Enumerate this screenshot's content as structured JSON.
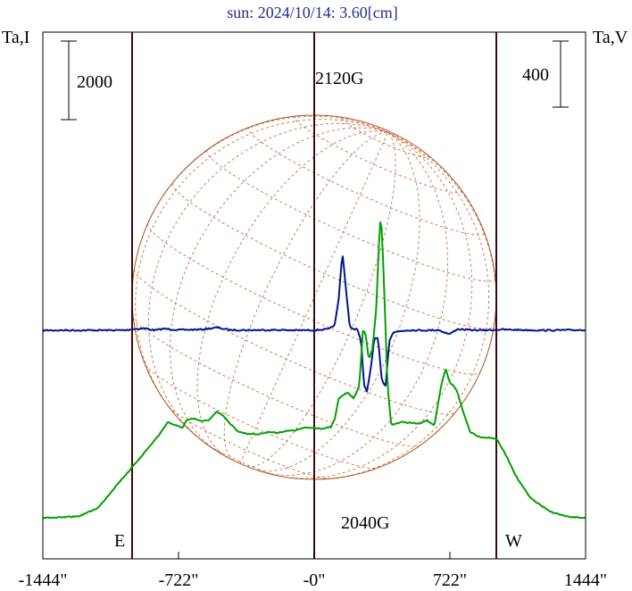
{
  "title": "sun: 2024/10/14: 3.60[cm]",
  "left_axis_label": "Ta,I",
  "right_axis_label": "Ta,V",
  "scale_bars": {
    "left": {
      "value": 2000,
      "label": "2000"
    },
    "right": {
      "value": 400,
      "label": "400"
    }
  },
  "annotations": {
    "peak_label": "2120G",
    "trough_label": "2040G",
    "east_label": "E",
    "west_label": "W"
  },
  "colors": {
    "intensity": "#00148c",
    "polarization": "#00a000",
    "disk": "#b4501e",
    "frame": "#000000",
    "limb_lines": "#3c0a0a"
  },
  "chart_data": {
    "type": "line",
    "title": "sun: 2024/10/14: 3.60[cm]",
    "x_unit": "arcsec",
    "xlim": [
      -1444,
      1444
    ],
    "x_ticks": [
      -1444,
      -722,
      0,
      722,
      1444
    ],
    "x_tick_labels": [
      "-1444\"",
      "-722\"",
      "-0\"",
      "722\"",
      "1444\""
    ],
    "vertical_lines": [
      -969,
      0,
      969
    ],
    "solar_radius_arcsec": 969,
    "series": [
      {
        "name": "Ta,I",
        "axis": "left",
        "units": "K",
        "scale_bar": 2000,
        "points": [
          [
            -1444,
            0
          ],
          [
            -1200,
            2
          ],
          [
            -1000,
            3
          ],
          [
            -969,
            30
          ],
          [
            -900,
            50
          ],
          [
            -850,
            0
          ],
          [
            -800,
            40
          ],
          [
            -722,
            10
          ],
          [
            -600,
            20
          ],
          [
            -520,
            70
          ],
          [
            -450,
            10
          ],
          [
            -350,
            5
          ],
          [
            -200,
            10
          ],
          [
            -100,
            0
          ],
          [
            0,
            5
          ],
          [
            80,
            30
          ],
          [
            110,
            150
          ],
          [
            130,
            780
          ],
          [
            150,
            2000
          ],
          [
            170,
            1000
          ],
          [
            190,
            50
          ],
          [
            230,
            30
          ],
          [
            250,
            -300
          ],
          [
            265,
            -1400
          ],
          [
            280,
            -1570
          ],
          [
            300,
            -1000
          ],
          [
            320,
            -200
          ],
          [
            340,
            -220
          ],
          [
            360,
            -1300
          ],
          [
            380,
            -1400
          ],
          [
            400,
            -250
          ],
          [
            420,
            -50
          ],
          [
            460,
            -20
          ],
          [
            500,
            5
          ],
          [
            600,
            0
          ],
          [
            660,
            10
          ],
          [
            720,
            -100
          ],
          [
            760,
            30
          ],
          [
            820,
            10
          ],
          [
            900,
            0
          ],
          [
            1000,
            20
          ],
          [
            1200,
            0
          ],
          [
            1444,
            10
          ]
        ]
      },
      {
        "name": "Ta,V",
        "axis": "right",
        "units": "K",
        "scale_bar": 400,
        "points": [
          [
            -1444,
            0
          ],
          [
            -1350,
            1
          ],
          [
            -1250,
            10
          ],
          [
            -1150,
            60
          ],
          [
            -1050,
            200
          ],
          [
            -969,
            305
          ],
          [
            -900,
            400
          ],
          [
            -820,
            510
          ],
          [
            -780,
            580
          ],
          [
            -740,
            560
          ],
          [
            -700,
            545
          ],
          [
            -680,
            590
          ],
          [
            -640,
            600
          ],
          [
            -600,
            585
          ],
          [
            -560,
            590
          ],
          [
            -520,
            645
          ],
          [
            -480,
            615
          ],
          [
            -440,
            560
          ],
          [
            -400,
            520
          ],
          [
            -360,
            510
          ],
          [
            -300,
            505
          ],
          [
            -250,
            520
          ],
          [
            -200,
            515
          ],
          [
            -150,
            525
          ],
          [
            -100,
            530
          ],
          [
            -50,
            545
          ],
          [
            0,
            545
          ],
          [
            50,
            540
          ],
          [
            90,
            550
          ],
          [
            110,
            600
          ],
          [
            130,
            720
          ],
          [
            150,
            740
          ],
          [
            180,
            760
          ],
          [
            210,
            720
          ],
          [
            240,
            800
          ],
          [
            260,
            1150
          ],
          [
            275,
            1100
          ],
          [
            290,
            960
          ],
          [
            310,
            1020
          ],
          [
            330,
            1270
          ],
          [
            350,
            1800
          ],
          [
            360,
            1750
          ],
          [
            375,
            1300
          ],
          [
            390,
            800
          ],
          [
            410,
            560
          ],
          [
            430,
            570
          ],
          [
            470,
            580
          ],
          [
            510,
            575
          ],
          [
            560,
            570
          ],
          [
            600,
            590
          ],
          [
            640,
            560
          ],
          [
            660,
            700
          ],
          [
            680,
            820
          ],
          [
            700,
            900
          ],
          [
            720,
            820
          ],
          [
            740,
            800
          ],
          [
            760,
            770
          ],
          [
            790,
            650
          ],
          [
            830,
            520
          ],
          [
            880,
            490
          ],
          [
            969,
            480
          ],
          [
            1020,
            380
          ],
          [
            1080,
            240
          ],
          [
            1150,
            120
          ],
          [
            1250,
            40
          ],
          [
            1350,
            5
          ],
          [
            1444,
            0
          ]
        ]
      }
    ]
  }
}
